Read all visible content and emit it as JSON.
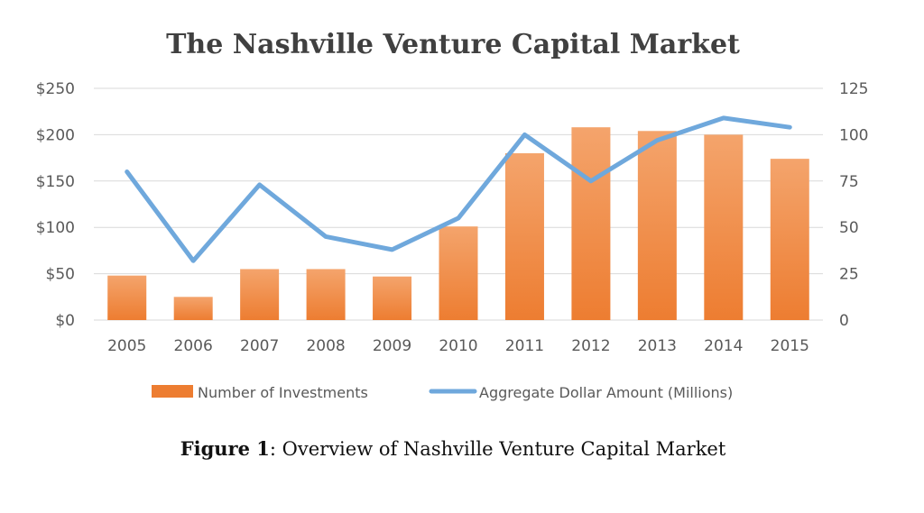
{
  "chart_data": {
    "type": "bar",
    "title": "The Nashville Venture Capital Market",
    "categories": [
      "2005",
      "2006",
      "2007",
      "2008",
      "2009",
      "2010",
      "2011",
      "2012",
      "2013",
      "2014",
      "2015"
    ],
    "series": [
      {
        "name": "Number of Investments",
        "type": "bar",
        "axis": "left",
        "color": "#ed7d31",
        "values": [
          48,
          25,
          55,
          55,
          47,
          101,
          180,
          208,
          204,
          200,
          174
        ]
      },
      {
        "name": "Aggregate Dollar Amount (Millions)",
        "type": "line",
        "axis": "right",
        "color": "#6fa8dc",
        "values": [
          80,
          32,
          73,
          45,
          38,
          55,
          100,
          75,
          97,
          109,
          104
        ]
      }
    ],
    "left_axis": {
      "ylim": [
        0,
        250
      ],
      "ticks": [
        0,
        50,
        100,
        150,
        200,
        250
      ],
      "tick_labels": [
        "$0",
        "$50",
        "$100",
        "$150",
        "$200",
        "$250"
      ]
    },
    "right_axis": {
      "ylim": [
        0,
        125
      ],
      "ticks": [
        0,
        25,
        50,
        75,
        100,
        125
      ],
      "tick_labels": [
        "0",
        "25",
        "50",
        "75",
        "100",
        "125"
      ]
    },
    "grid": true,
    "legend_position": "bottom"
  },
  "caption": {
    "label": "Figure 1",
    "text": ": Overview of Nashville Venture Capital Market"
  }
}
